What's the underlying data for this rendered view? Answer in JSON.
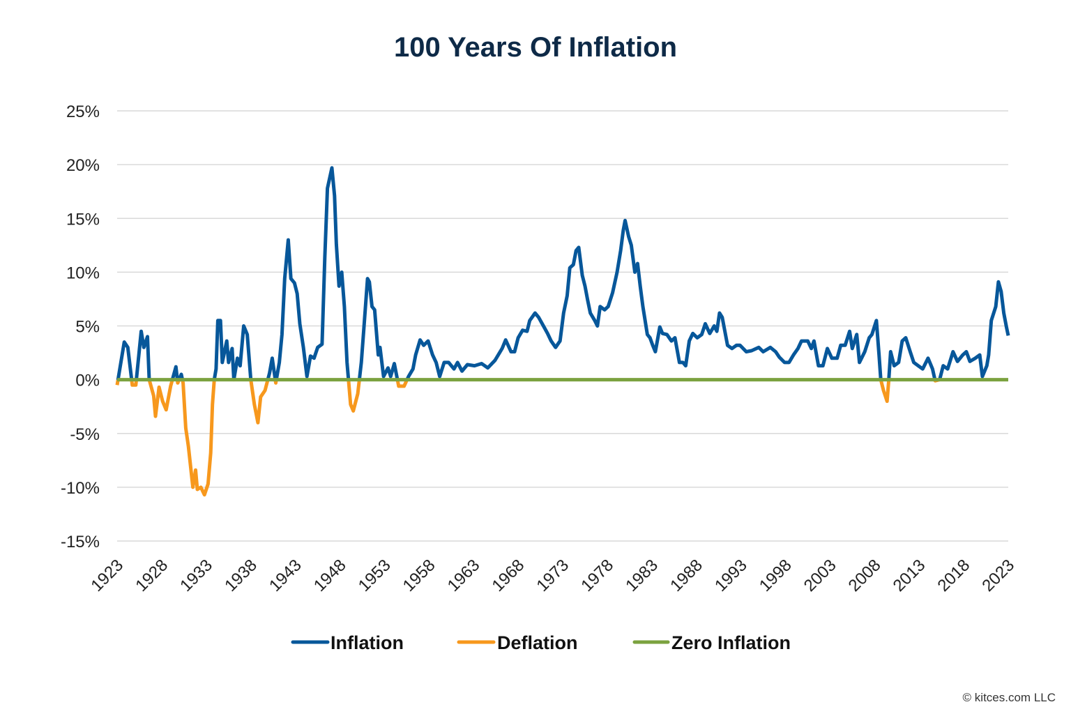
{
  "chart_data": {
    "type": "line",
    "title": "100 Years Of Inflation",
    "xlabel": "",
    "ylabel": "",
    "xlim": [
      1923,
      2023
    ],
    "ylim": [
      -15,
      25
    ],
    "grid": true,
    "legend_position": "bottom",
    "y_ticks": [
      "25%",
      "20%",
      "15%",
      "10%",
      "5%",
      "0%",
      "-5%",
      "-10%",
      "-15%"
    ],
    "y_tick_values": [
      25,
      20,
      15,
      10,
      5,
      0,
      -5,
      -10,
      -15
    ],
    "x_ticks": [
      "1923",
      "1928",
      "1933",
      "1938",
      "1943",
      "1948",
      "1953",
      "1958",
      "1963",
      "1968",
      "1973",
      "1978",
      "1983",
      "1988",
      "1993",
      "1998",
      "2003",
      "2008",
      "2013",
      "2018",
      "2023"
    ],
    "series": [
      {
        "name": "Inflation",
        "color": "#07579a",
        "rule": "values above 0%"
      },
      {
        "name": "Deflation",
        "color": "#f7981d",
        "rule": "values below 0%"
      },
      {
        "name": "Zero Inflation",
        "color": "#7ba23f",
        "constant": 0
      }
    ],
    "points": [
      [
        1923.0,
        -0.5
      ],
      [
        1923.8,
        3.5
      ],
      [
        1924.2,
        3
      ],
      [
        1924.7,
        -0.5
      ],
      [
        1925.1,
        -0.5
      ],
      [
        1925.7,
        4.5
      ],
      [
        1926.0,
        3
      ],
      [
        1926.4,
        4
      ],
      [
        1926.6,
        0
      ],
      [
        1927.1,
        -1.5
      ],
      [
        1927.3,
        -3.4
      ],
      [
        1927.7,
        -0.7
      ],
      [
        1928.1,
        -2
      ],
      [
        1928.5,
        -2.8
      ],
      [
        1929.0,
        -0.6
      ],
      [
        1929.6,
        1.2
      ],
      [
        1929.8,
        -0.3
      ],
      [
        1930.2,
        0.5
      ],
      [
        1930.4,
        -0.3
      ],
      [
        1930.7,
        -4.5
      ],
      [
        1931.0,
        -6.2
      ],
      [
        1931.5,
        -10
      ],
      [
        1931.8,
        -8.4
      ],
      [
        1932.0,
        -10.2
      ],
      [
        1932.4,
        -10
      ],
      [
        1932.8,
        -10.7
      ],
      [
        1933.2,
        -9.7
      ],
      [
        1933.5,
        -6.8
      ],
      [
        1933.7,
        -2.3
      ],
      [
        1933.9,
        0
      ],
      [
        1934.1,
        1
      ],
      [
        1934.3,
        5.5
      ],
      [
        1934.6,
        5.5
      ],
      [
        1934.8,
        1.6
      ],
      [
        1935.3,
        3.6
      ],
      [
        1935.5,
        1.6
      ],
      [
        1935.9,
        2.9
      ],
      [
        1936.1,
        0
      ],
      [
        1936.5,
        2
      ],
      [
        1936.8,
        1.3
      ],
      [
        1937.2,
        5
      ],
      [
        1937.6,
        4.2
      ],
      [
        1938.0,
        0
      ],
      [
        1938.4,
        -2.3
      ],
      [
        1938.8,
        -4
      ],
      [
        1939.1,
        -1.6
      ],
      [
        1939.6,
        -1
      ],
      [
        1940.1,
        0.6
      ],
      [
        1940.4,
        2
      ],
      [
        1940.8,
        -0.3
      ],
      [
        1941.2,
        1.6
      ],
      [
        1941.5,
        4.2
      ],
      [
        1941.8,
        9.4
      ],
      [
        1942.2,
        13
      ],
      [
        1942.5,
        9.4
      ],
      [
        1942.9,
        9
      ],
      [
        1943.2,
        8
      ],
      [
        1943.5,
        5.2
      ],
      [
        1943.9,
        3
      ],
      [
        1944.3,
        0.3
      ],
      [
        1944.7,
        2.2
      ],
      [
        1945.1,
        2
      ],
      [
        1945.5,
        3
      ],
      [
        1946.0,
        3.3
      ],
      [
        1946.3,
        11.3
      ],
      [
        1946.6,
        17.8
      ],
      [
        1947.1,
        19.7
      ],
      [
        1947.4,
        17.1
      ],
      [
        1947.6,
        12.6
      ],
      [
        1947.9,
        8.7
      ],
      [
        1948.2,
        10
      ],
      [
        1948.5,
        6.8
      ],
      [
        1948.8,
        1.6
      ],
      [
        1949.2,
        -2.3
      ],
      [
        1949.5,
        -2.9
      ],
      [
        1950.0,
        -1.3
      ],
      [
        1950.4,
        1.6
      ],
      [
        1950.7,
        4.9
      ],
      [
        1951.1,
        9.4
      ],
      [
        1951.3,
        9.1
      ],
      [
        1951.6,
        6.8
      ],
      [
        1951.9,
        6.5
      ],
      [
        1952.3,
        2.3
      ],
      [
        1952.5,
        3
      ],
      [
        1952.9,
        0.3
      ],
      [
        1953.4,
        1.1
      ],
      [
        1953.7,
        0.3
      ],
      [
        1954.1,
        1.5
      ],
      [
        1954.6,
        -0.6
      ],
      [
        1955.2,
        -0.6
      ],
      [
        1955.7,
        0.3
      ],
      [
        1956.2,
        1
      ],
      [
        1956.5,
        2.3
      ],
      [
        1957.0,
        3.7
      ],
      [
        1957.4,
        3.2
      ],
      [
        1957.9,
        3.6
      ],
      [
        1958.4,
        2.3
      ],
      [
        1958.8,
        1.6
      ],
      [
        1959.2,
        0.3
      ],
      [
        1959.7,
        1.6
      ],
      [
        1960.2,
        1.6
      ],
      [
        1960.8,
        1
      ],
      [
        1961.2,
        1.6
      ],
      [
        1961.7,
        0.8
      ],
      [
        1962.3,
        1.4
      ],
      [
        1963.1,
        1.3
      ],
      [
        1963.9,
        1.5
      ],
      [
        1964.6,
        1.1
      ],
      [
        1965.4,
        1.8
      ],
      [
        1966.2,
        2.9
      ],
      [
        1966.6,
        3.7
      ],
      [
        1967.2,
        2.6
      ],
      [
        1967.6,
        2.6
      ],
      [
        1968.0,
        3.9
      ],
      [
        1968.5,
        4.6
      ],
      [
        1969.0,
        4.5
      ],
      [
        1969.3,
        5.5
      ],
      [
        1969.9,
        6.2
      ],
      [
        1970.3,
        5.8
      ],
      [
        1970.9,
        4.9
      ],
      [
        1971.3,
        4.3
      ],
      [
        1971.7,
        3.6
      ],
      [
        1972.2,
        3
      ],
      [
        1972.7,
        3.6
      ],
      [
        1973.1,
        6.2
      ],
      [
        1973.5,
        7.8
      ],
      [
        1973.8,
        10.4
      ],
      [
        1974.2,
        10.7
      ],
      [
        1974.5,
        12
      ],
      [
        1974.8,
        12.3
      ],
      [
        1975.2,
        9.7
      ],
      [
        1975.5,
        8.7
      ],
      [
        1975.8,
        7.4
      ],
      [
        1976.1,
        6.2
      ],
      [
        1976.6,
        5.5
      ],
      [
        1976.9,
        5
      ],
      [
        1977.2,
        6.8
      ],
      [
        1977.7,
        6.5
      ],
      [
        1978.1,
        6.8
      ],
      [
        1978.6,
        8.1
      ],
      [
        1979.1,
        10
      ],
      [
        1979.5,
        12
      ],
      [
        1979.8,
        13.9
      ],
      [
        1980.0,
        14.8
      ],
      [
        1980.4,
        13.3
      ],
      [
        1980.7,
        12.5
      ],
      [
        1981.1,
        10
      ],
      [
        1981.4,
        10.8
      ],
      [
        1981.7,
        8.7
      ],
      [
        1982.0,
        6.8
      ],
      [
        1982.5,
        4.2
      ],
      [
        1982.8,
        3.9
      ],
      [
        1983.1,
        3.2
      ],
      [
        1983.4,
        2.6
      ],
      [
        1983.9,
        4.9
      ],
      [
        1984.2,
        4.3
      ],
      [
        1984.7,
        4.2
      ],
      [
        1985.2,
        3.6
      ],
      [
        1985.6,
        3.9
      ],
      [
        1986.1,
        1.6
      ],
      [
        1986.5,
        1.6
      ],
      [
        1986.8,
        1.3
      ],
      [
        1987.2,
        3.6
      ],
      [
        1987.6,
        4.3
      ],
      [
        1988.1,
        3.9
      ],
      [
        1988.6,
        4.2
      ],
      [
        1989.0,
        5.2
      ],
      [
        1989.5,
        4.3
      ],
      [
        1990.0,
        5
      ],
      [
        1990.3,
        4.5
      ],
      [
        1990.6,
        6.2
      ],
      [
        1990.9,
        5.8
      ],
      [
        1991.2,
        4.5
      ],
      [
        1991.5,
        3.2
      ],
      [
        1992.0,
        2.9
      ],
      [
        1992.5,
        3.2
      ],
      [
        1992.9,
        3.2
      ],
      [
        1993.6,
        2.6
      ],
      [
        1994.2,
        2.7
      ],
      [
        1995.0,
        3
      ],
      [
        1995.5,
        2.6
      ],
      [
        1996.3,
        3
      ],
      [
        1996.9,
        2.6
      ],
      [
        1997.3,
        2.1
      ],
      [
        1997.9,
        1.6
      ],
      [
        1998.4,
        1.6
      ],
      [
        1998.9,
        2.3
      ],
      [
        1999.4,
        2.9
      ],
      [
        1999.8,
        3.6
      ],
      [
        2000.5,
        3.6
      ],
      [
        2000.9,
        2.9
      ],
      [
        2001.2,
        3.6
      ],
      [
        2001.7,
        1.3
      ],
      [
        2002.2,
        1.3
      ],
      [
        2002.7,
        2.9
      ],
      [
        2003.2,
        2
      ],
      [
        2003.8,
        2
      ],
      [
        2004.2,
        3.2
      ],
      [
        2004.7,
        3.2
      ],
      [
        2005.2,
        4.5
      ],
      [
        2005.5,
        2.9
      ],
      [
        2006.0,
        4.2
      ],
      [
        2006.3,
        1.6
      ],
      [
        2006.9,
        2.6
      ],
      [
        2007.4,
        3.9
      ],
      [
        2007.7,
        4.2
      ],
      [
        2008.2,
        5.5
      ],
      [
        2008.5,
        2.3
      ],
      [
        2008.7,
        0
      ],
      [
        2009.0,
        -1
      ],
      [
        2009.4,
        -2
      ],
      [
        2009.6,
        0
      ],
      [
        2009.8,
        2.6
      ],
      [
        2010.2,
        1.3
      ],
      [
        2010.7,
        1.6
      ],
      [
        2011.1,
        3.6
      ],
      [
        2011.5,
        3.9
      ],
      [
        2012.0,
        2.6
      ],
      [
        2012.4,
        1.6
      ],
      [
        2012.9,
        1.3
      ],
      [
        2013.4,
        1
      ],
      [
        2014.0,
        2
      ],
      [
        2014.5,
        1
      ],
      [
        2014.8,
        -0.1
      ],
      [
        2015.3,
        0
      ],
      [
        2015.7,
        1.3
      ],
      [
        2016.2,
        1
      ],
      [
        2016.8,
        2.6
      ],
      [
        2017.3,
        1.7
      ],
      [
        2017.9,
        2.3
      ],
      [
        2018.3,
        2.6
      ],
      [
        2018.7,
        1.7
      ],
      [
        2019.3,
        2
      ],
      [
        2019.8,
        2.3
      ],
      [
        2020.1,
        0.3
      ],
      [
        2020.6,
        1.3
      ],
      [
        2020.8,
        2.3
      ],
      [
        2021.1,
        5.5
      ],
      [
        2021.6,
        6.8
      ],
      [
        2021.9,
        9.1
      ],
      [
        2022.2,
        8.2
      ],
      [
        2022.5,
        6.2
      ],
      [
        2022.8,
        4.9
      ],
      [
        2023.0,
        4.1
      ]
    ]
  },
  "legend": {
    "items": [
      {
        "label": "Inflation",
        "color": "#07579a"
      },
      {
        "label": "Deflation",
        "color": "#f7981d"
      },
      {
        "label": "Zero Inflation",
        "color": "#7ba23f"
      }
    ]
  },
  "credit": "© kitces.com LLC"
}
